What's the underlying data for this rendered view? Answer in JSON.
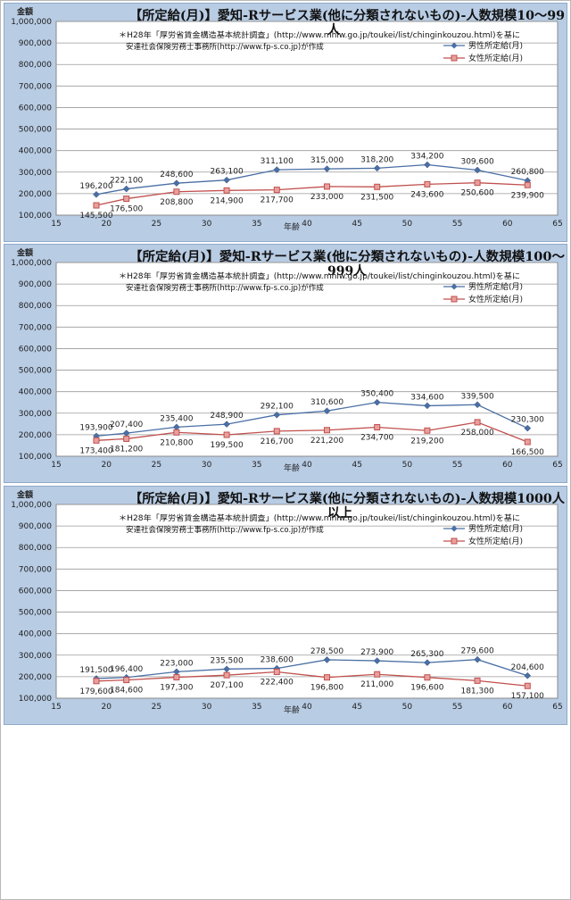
{
  "charts": [
    {
      "title_line1": "【所定給(月)】愛知-Rサービス業(他に分類されないもの)-人数規模10～99",
      "title_line2": "人",
      "source_line1": "＊H28年「厚労省賃金構造基本統計調査」(http://www.mhlw.go.jp/toukei/list/chinginkouzou.html)を基に",
      "source_line2": "安達社会保険労務士事務所(http://www.fp-s.co.jp)が作成"
    },
    {
      "title_line1": "【所定給(月)】愛知-Rサービス業(他に分類されないもの)-人数規模100～",
      "title_line2": "999人",
      "source_line1": "＊H28年「厚労省賃金構造基本統計調査」(http://www.mhlw.go.jp/toukei/list/chinginkouzou.html)を基に",
      "source_line2": "安達社会保険労務士事務所(http://www.fp-s.co.jp)が作成"
    },
    {
      "title_line1": "【所定給(月)】愛知-Rサービス業(他に分類されないもの)-人数規模1000人",
      "title_line2": "以上",
      "source_line1": "＊H28年「厚労省賃金構造基本統計調査」(http://www.mhlw.go.jp/toukei/list/chinginkouzou.html)を基に",
      "source_line2": "安達社会保険労務士事務所(http://www.fp-s.co.jp)が作成"
    }
  ],
  "chart_data": [
    {
      "type": "line",
      "ylabel": "金額",
      "xlabel": "年齢",
      "xlim": [
        15,
        65
      ],
      "ylim": [
        100000,
        1000000
      ],
      "xticks": [
        15,
        20,
        25,
        30,
        35,
        40,
        45,
        50,
        55,
        60,
        65
      ],
      "yticks": [
        100000,
        200000,
        300000,
        400000,
        500000,
        600000,
        700000,
        800000,
        900000,
        1000000
      ],
      "ytick_labels": [
        "100,000",
        "200,000",
        "300,000",
        "400,000",
        "500,000",
        "600,000",
        "700,000",
        "800,000",
        "900,000",
        "1,000,000"
      ],
      "x": [
        19,
        22,
        27,
        32,
        37,
        42,
        47,
        52,
        57,
        62
      ],
      "legend_position": "top-right",
      "series": [
        {
          "name": "男性所定給(月)",
          "color": "#4a6fa5",
          "marker": "diamond",
          "values": [
            196200,
            222100,
            248600,
            263100,
            311100,
            315000,
            318200,
            334200,
            309600,
            260800
          ],
          "labels": [
            "196,200",
            "222,100",
            "248,600",
            "263,100",
            "311,100",
            "315,000",
            "318,200",
            "334,200",
            "309,600",
            "260,800"
          ]
        },
        {
          "name": "女性所定給(月)",
          "color": "#c0504d",
          "marker": "square",
          "values": [
            145500,
            176500,
            208800,
            214900,
            217700,
            233000,
            231500,
            243600,
            250600,
            239900
          ],
          "labels": [
            "145,500",
            "176,500",
            "208,800",
            "214,900",
            "217,700",
            "233,000",
            "231,500",
            "243,600",
            "250,600",
            "239,900"
          ]
        }
      ]
    },
    {
      "type": "line",
      "ylabel": "金額",
      "xlabel": "年齢",
      "xlim": [
        15,
        65
      ],
      "ylim": [
        100000,
        1000000
      ],
      "xticks": [
        15,
        20,
        25,
        30,
        35,
        40,
        45,
        50,
        55,
        60,
        65
      ],
      "yticks": [
        100000,
        200000,
        300000,
        400000,
        500000,
        600000,
        700000,
        800000,
        900000,
        1000000
      ],
      "ytick_labels": [
        "100,000",
        "200,000",
        "300,000",
        "400,000",
        "500,000",
        "600,000",
        "700,000",
        "800,000",
        "900,000",
        "1,000,000"
      ],
      "x": [
        19,
        22,
        27,
        32,
        37,
        42,
        47,
        52,
        57,
        62
      ],
      "legend_position": "top-right",
      "series": [
        {
          "name": "男性所定給(月)",
          "color": "#4a6fa5",
          "marker": "diamond",
          "values": [
            193900,
            207400,
            235400,
            248900,
            292100,
            310600,
            350400,
            334600,
            339500,
            230300
          ],
          "labels": [
            "193,900",
            "207,400",
            "235,400",
            "248,900",
            "292,100",
            "310,600",
            "350,400",
            "334,600",
            "339,500",
            "230,300"
          ]
        },
        {
          "name": "女性所定給(月)",
          "color": "#c0504d",
          "marker": "square",
          "values": [
            173400,
            181200,
            210800,
            199500,
            216700,
            221200,
            234700,
            219200,
            258000,
            166500
          ],
          "labels": [
            "173,400",
            "181,200",
            "210,800",
            "199,500",
            "216,700",
            "221,200",
            "234,700",
            "219,200",
            "258,000",
            "166,500"
          ]
        }
      ]
    },
    {
      "type": "line",
      "ylabel": "金額",
      "xlabel": "年齢",
      "xlim": [
        15,
        65
      ],
      "ylim": [
        100000,
        1000000
      ],
      "xticks": [
        15,
        20,
        25,
        30,
        35,
        40,
        45,
        50,
        55,
        60,
        65
      ],
      "yticks": [
        100000,
        200000,
        300000,
        400000,
        500000,
        600000,
        700000,
        800000,
        900000,
        1000000
      ],
      "ytick_labels": [
        "100,000",
        "200,000",
        "300,000",
        "400,000",
        "500,000",
        "600,000",
        "700,000",
        "800,000",
        "900,000",
        "1,000,000"
      ],
      "x": [
        19,
        22,
        27,
        32,
        37,
        42,
        47,
        52,
        57,
        62
      ],
      "legend_position": "top-right",
      "series": [
        {
          "name": "男性所定給(月)",
          "color": "#4a6fa5",
          "marker": "diamond",
          "values": [
            191500,
            196400,
            223000,
            235500,
            238600,
            278500,
            273900,
            265300,
            279600,
            204600
          ],
          "labels": [
            "191,500",
            "196,400",
            "223,000",
            "235,500",
            "238,600",
            "278,500",
            "273,900",
            "265,300",
            "279,600",
            "204,600"
          ]
        },
        {
          "name": "女性所定給(月)",
          "color": "#c0504d",
          "marker": "square",
          "values": [
            179600,
            184600,
            197300,
            207100,
            222400,
            196800,
            211000,
            196600,
            181300,
            157100
          ],
          "labels": [
            "179,600",
            "184,600",
            "197,300",
            "207,100",
            "222,400",
            "196,800",
            "211,000",
            "196,600",
            "181,300",
            "157,100"
          ]
        }
      ]
    }
  ]
}
